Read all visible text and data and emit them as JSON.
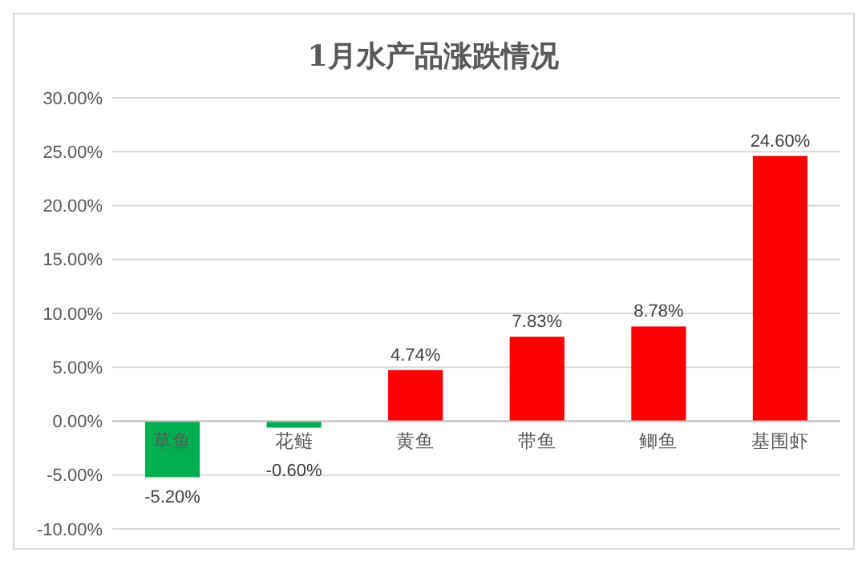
{
  "chart_data": {
    "type": "bar",
    "title": "1月水产品涨跌情况",
    "categories": [
      "草鱼",
      "花鲢",
      "黄鱼",
      "带鱼",
      "鲫鱼",
      "基围虾"
    ],
    "values": [
      -5.2,
      -0.6,
      4.74,
      7.83,
      8.78,
      24.6
    ],
    "colors": [
      "#00b050",
      "#00b050",
      "#ff0000",
      "#ff0000",
      "#ff0000",
      "#ff0000"
    ],
    "value_labels": [
      "-5.20%",
      "-0.60%",
      "4.74%",
      "7.83%",
      "8.78%",
      "24.60%"
    ],
    "ylim": [
      -10,
      30
    ],
    "yticks": [
      {
        "value": -10,
        "label": "-10.00%"
      },
      {
        "value": -5,
        "label": "-5.00%"
      },
      {
        "value": 0,
        "label": "0.00%"
      },
      {
        "value": 5,
        "label": "5.00%"
      },
      {
        "value": 10,
        "label": "10.00%"
      },
      {
        "value": 15,
        "label": "15.00%"
      },
      {
        "value": 20,
        "label": "20.00%"
      },
      {
        "value": 25,
        "label": "25.00%"
      },
      {
        "value": 30,
        "label": "30.00%"
      }
    ],
    "grid": true
  }
}
